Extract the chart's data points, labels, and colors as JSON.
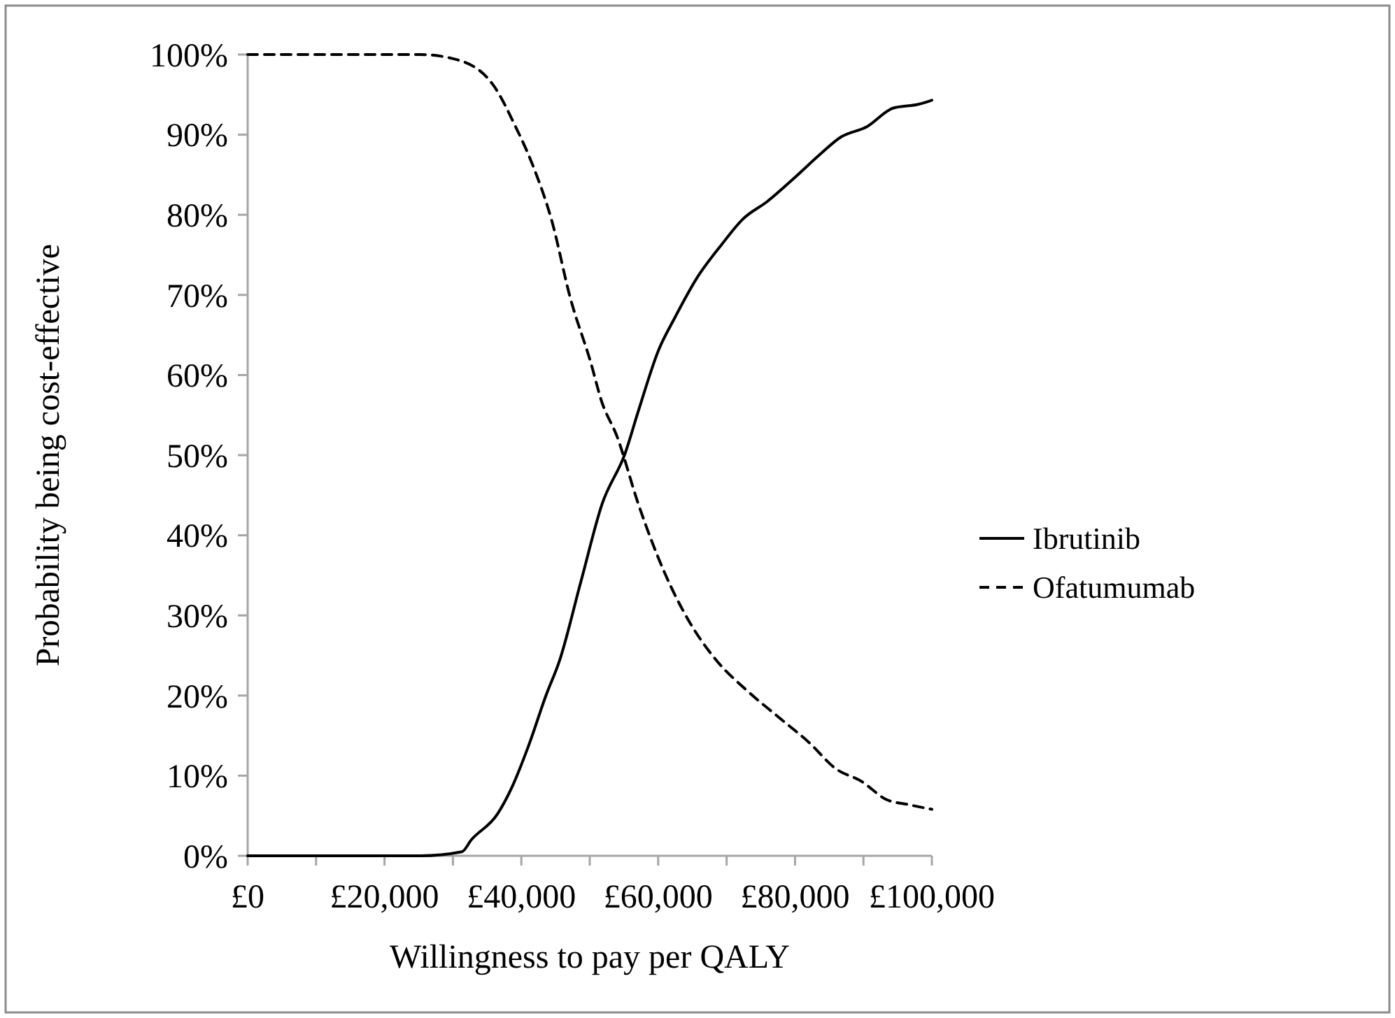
{
  "chart_data": {
    "type": "line",
    "xlabel": "Willingness to pay per QALY",
    "ylabel": "Probability being cost-effective",
    "xlim": [
      0,
      100000
    ],
    "xticks": [
      {
        "value": 0,
        "label": "£0"
      },
      {
        "value": 10000,
        "label": null
      },
      {
        "value": 20000,
        "label": "£20,000"
      },
      {
        "value": 30000,
        "label": null
      },
      {
        "value": 40000,
        "label": "£40,000"
      },
      {
        "value": 50000,
        "label": null
      },
      {
        "value": 60000,
        "label": "£60,000"
      },
      {
        "value": 70000,
        "label": null
      },
      {
        "value": 80000,
        "label": "£80,000"
      },
      {
        "value": 90000,
        "label": null
      },
      {
        "value": 100000,
        "label": "£100,000"
      }
    ],
    "ylim": [
      0,
      100
    ],
    "yticks": [
      {
        "value": 0,
        "label": "0%"
      },
      {
        "value": 10,
        "label": "10%"
      },
      {
        "value": 20,
        "label": "20%"
      },
      {
        "value": 30,
        "label": "30%"
      },
      {
        "value": 40,
        "label": "40%"
      },
      {
        "value": 50,
        "label": "50%"
      },
      {
        "value": 60,
        "label": "60%"
      },
      {
        "value": 70,
        "label": "70%"
      },
      {
        "value": 80,
        "label": "80%"
      },
      {
        "value": 90,
        "label": "90%"
      },
      {
        "value": 100,
        "label": "100%"
      }
    ],
    "grid": false,
    "legend": "right",
    "marker": "none",
    "series": [
      {
        "name": "Ibrutinib",
        "color": "#000000",
        "line_style": "solid",
        "x": [
          0,
          25300,
          31300,
          32700,
          36500,
          38700,
          41000,
          43600,
          45600,
          48700,
          51800,
          55200,
          57100,
          60100,
          62400,
          65800,
          69200,
          72300,
          76000,
          79900,
          83600,
          86700,
          90500,
          94300,
          98100,
          100000
        ],
        "values": [
          0,
          0,
          0.5,
          2,
          5.2,
          8.7,
          13.6,
          20,
          24.4,
          34.2,
          43.9,
          50.3,
          55.5,
          63.2,
          67.1,
          72.3,
          76.2,
          79.4,
          81.7,
          84.6,
          87.5,
          89.7,
          91,
          93.3,
          93.8,
          94.3
        ]
      },
      {
        "name": "Ofatumumab",
        "color": "#000000",
        "line_style": "dashed",
        "x": [
          0,
          25200,
          30400,
          35800,
          39100,
          41800,
          44500,
          47100,
          50200,
          51700,
          54000,
          57100,
          60900,
          64700,
          68400,
          73000,
          77600,
          82100,
          85900,
          89700,
          93400,
          96500,
          100000
        ],
        "values": [
          100,
          100,
          99.4,
          96.3,
          91.1,
          85.9,
          79.1,
          69.8,
          61.4,
          56.8,
          52.3,
          43.9,
          35.4,
          29,
          24.5,
          20.6,
          17.3,
          14.1,
          10.9,
          9.3,
          7,
          6.4,
          5.8
        ]
      }
    ]
  }
}
